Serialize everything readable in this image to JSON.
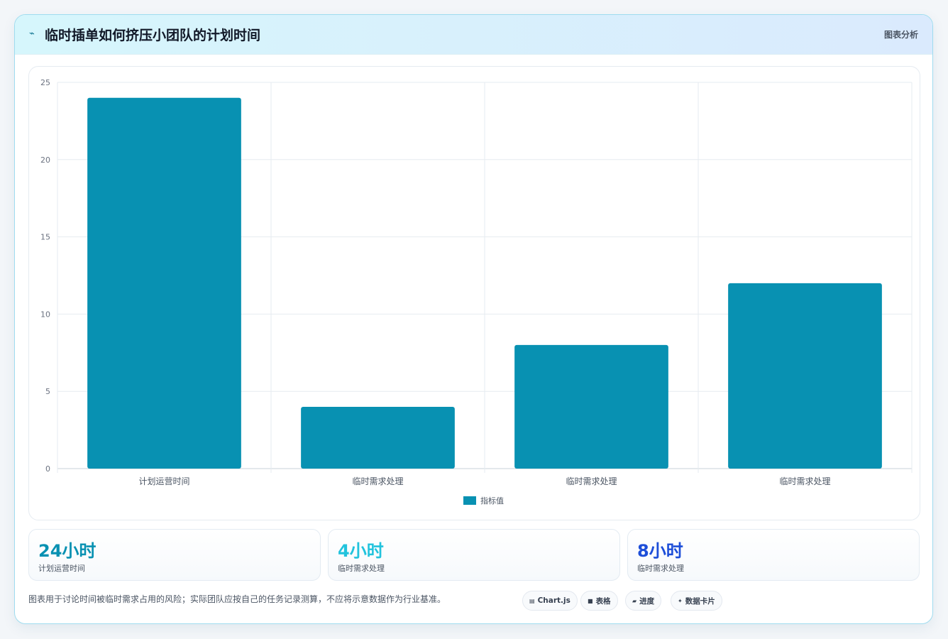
{
  "header": {
    "icon": "line-chart-icon",
    "title": "临时插单如何挤压小团队的计划时间",
    "action_label": "图表分析"
  },
  "colors": {
    "bar": "#0891b2",
    "stat_1": "#0891b2",
    "stat_2": "#22c3dd",
    "stat_3": "#1d4ed8"
  },
  "chart_data": {
    "type": "bar",
    "categories": [
      "计划运营时间",
      "临时需求处理",
      "临时需求处理",
      "临时需求处理"
    ],
    "series": [
      {
        "name": "指标值",
        "values": [
          24,
          4,
          8,
          12
        ]
      }
    ],
    "ylim": [
      0,
      25
    ],
    "yticks": [
      0,
      5,
      10,
      15,
      20,
      25
    ],
    "grid": true,
    "legend_position": "bottom"
  },
  "stats": [
    {
      "value": "24小时",
      "label": "计划运营时间"
    },
    {
      "value": "4小时",
      "label": "临时需求处理"
    },
    {
      "value": "8小时",
      "label": "临时需求处理"
    }
  ],
  "footnote": "图表用于讨论时间被临时需求占用的风险；实际团队应按自己的任务记录测算，不应将示意数据作为行业基准。",
  "chips": [
    {
      "icon": "chart-icon",
      "label": "Chart.js"
    },
    {
      "icon": "table-icon",
      "label": "表格"
    },
    {
      "icon": "progress-icon",
      "label": "进度"
    },
    {
      "icon": "sparkle-icon",
      "label": "数据卡片"
    }
  ]
}
